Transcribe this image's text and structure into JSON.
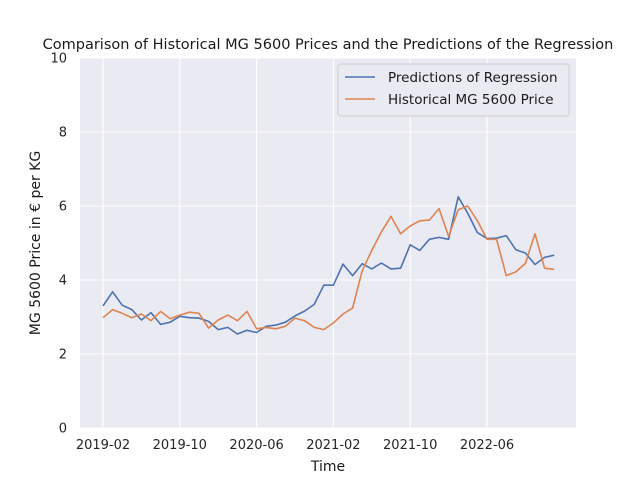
{
  "chart_data": {
    "type": "line",
    "title": "Comparison of Historical MG 5600 Prices and the Predictions of the Regression",
    "xlabel": "Time",
    "ylabel": "MG 5600 Price in € per KG",
    "ylim": [
      0,
      10
    ],
    "yticks": [
      0,
      2,
      4,
      6,
      8,
      10
    ],
    "xticks": [
      "2019-02",
      "2019-10",
      "2020-06",
      "2021-02",
      "2021-10",
      "2022-06"
    ],
    "x_start": "2019-02",
    "grid": true,
    "legend_position": "top-right",
    "series": [
      {
        "name": "Predictions of Regression",
        "color": "#4c72b0",
        "values": [
          3.3,
          3.68,
          3.32,
          3.2,
          2.92,
          3.12,
          2.8,
          2.86,
          3.02,
          2.98,
          2.97,
          2.88,
          2.66,
          2.72,
          2.54,
          2.64,
          2.58,
          2.75,
          2.78,
          2.86,
          3.03,
          3.16,
          3.34,
          3.86,
          3.86,
          4.43,
          4.12,
          4.44,
          4.3,
          4.46,
          4.3,
          4.32,
          4.95,
          4.8,
          5.1,
          5.15,
          5.1,
          6.25,
          5.8,
          5.28,
          5.12,
          5.13,
          5.2,
          4.82,
          4.73,
          4.42,
          4.61,
          4.67
        ]
      },
      {
        "name": "Historical MG 5600 Price",
        "color": "#dd8452",
        "values": [
          2.98,
          3.2,
          3.1,
          2.98,
          3.08,
          2.9,
          3.15,
          2.95,
          3.05,
          3.13,
          3.1,
          2.7,
          2.92,
          3.05,
          2.9,
          3.15,
          2.68,
          2.72,
          2.68,
          2.75,
          2.97,
          2.9,
          2.72,
          2.66,
          2.84,
          3.08,
          3.24,
          4.25,
          4.8,
          5.3,
          5.72,
          5.25,
          5.46,
          5.6,
          5.62,
          5.93,
          5.18,
          5.9,
          6.0,
          5.6,
          5.1,
          5.1,
          4.12,
          4.22,
          4.45,
          5.25,
          4.32,
          4.29
        ]
      }
    ]
  }
}
